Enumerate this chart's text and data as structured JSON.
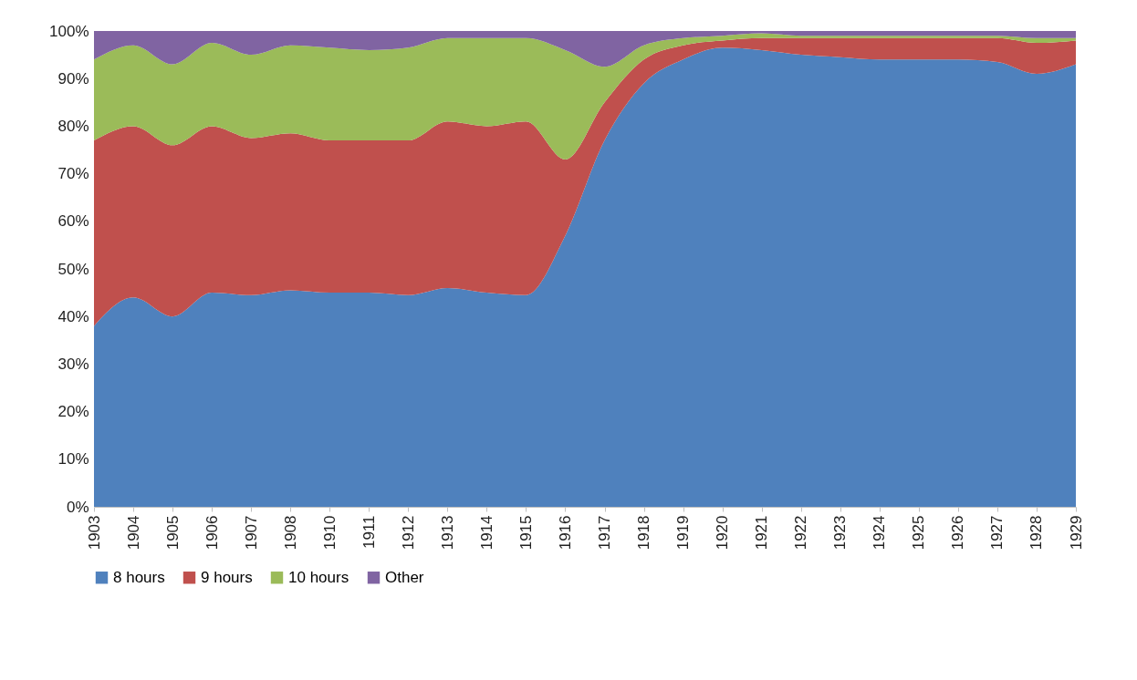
{
  "chart_data": {
    "type": "area",
    "stacked": true,
    "legend": "bottom",
    "grid": false,
    "categories": [
      "1903",
      "1904",
      "1905",
      "1906",
      "1907",
      "1908",
      "1910",
      "1911",
      "1912",
      "1913",
      "1914",
      "1915",
      "1916",
      "1917",
      "1918",
      "1919",
      "1920",
      "1921",
      "1922",
      "1923",
      "1924",
      "1925",
      "1926",
      "1927",
      "1928",
      "1929"
    ],
    "ylim": [
      0,
      100
    ],
    "yticks": [
      {
        "value": 0,
        "label": "0%"
      },
      {
        "value": 10,
        "label": "10%"
      },
      {
        "value": 20,
        "label": "20%"
      },
      {
        "value": 30,
        "label": "30%"
      },
      {
        "value": 40,
        "label": "40%"
      },
      {
        "value": 50,
        "label": "50%"
      },
      {
        "value": 60,
        "label": "60%"
      },
      {
        "value": 70,
        "label": "70%"
      },
      {
        "value": 80,
        "label": "80%"
      },
      {
        "value": 90,
        "label": "90%"
      },
      {
        "value": 100,
        "label": "100%"
      }
    ],
    "series": [
      {
        "name": "8 hours",
        "color": "#4f81bd",
        "values": [
          38,
          44,
          40,
          45,
          44.5,
          45.5,
          45,
          45,
          44.5,
          46,
          45,
          44.5,
          57,
          77,
          89,
          94,
          96.5,
          96,
          95,
          94.5,
          94,
          94,
          94,
          93.5,
          91,
          93
        ]
      },
      {
        "name": "9 hours",
        "color": "#c0504d",
        "values": [
          39,
          36,
          36,
          35,
          33,
          33,
          32,
          32,
          32.5,
          35,
          35,
          36.5,
          16,
          8,
          5,
          3,
          1.5,
          2.5,
          3.5,
          4,
          4.5,
          4.5,
          4.5,
          5,
          6.5,
          5
        ]
      },
      {
        "name": "10 hours",
        "color": "#9bbb59",
        "values": [
          17,
          17,
          17,
          17.5,
          17.5,
          18.5,
          19.5,
          19,
          19.5,
          17.5,
          18.5,
          17.5,
          23,
          7.5,
          3,
          1.5,
          1,
          1,
          0.5,
          0.5,
          0.5,
          0.5,
          0.5,
          0.5,
          1,
          0.5
        ]
      },
      {
        "name": "Other",
        "color": "#8064a2",
        "values": [
          6,
          3,
          7,
          2.5,
          5,
          3,
          3.5,
          4,
          3.5,
          1.5,
          1.5,
          1.5,
          4,
          7.5,
          3,
          1.5,
          1,
          0.5,
          1,
          1,
          1,
          1,
          1,
          1,
          1.5,
          1.5
        ]
      }
    ]
  }
}
